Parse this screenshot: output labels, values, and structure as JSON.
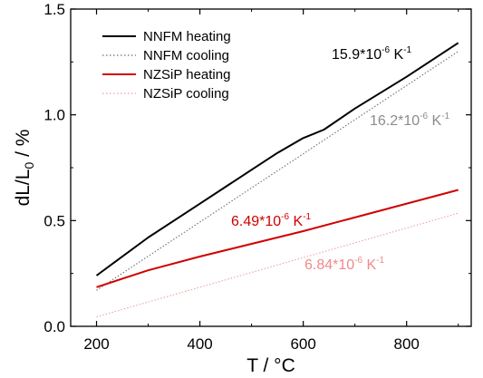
{
  "chart_data": {
    "type": "line",
    "xlabel": "T / °C",
    "ylabel": {
      "prefix": "dL/L",
      "sub": "0",
      "suffix": " / %"
    },
    "xlim": [
      150,
      925
    ],
    "ylim": [
      0.0,
      1.5
    ],
    "xticks": [
      200,
      400,
      600,
      800
    ],
    "yticks": [
      0.0,
      0.5,
      1.0,
      1.5
    ],
    "grid": false,
    "legend_position": "top-left",
    "series": [
      {
        "name": "NNFM heating",
        "color": "#000000",
        "style": "solid",
        "x": [
          200,
          300,
          400,
          500,
          550,
          600,
          620,
          640,
          700,
          800,
          900
        ],
        "y": [
          0.24,
          0.42,
          0.58,
          0.74,
          0.82,
          0.89,
          0.91,
          0.93,
          1.03,
          1.18,
          1.34
        ]
      },
      {
        "name": "NNFM cooling",
        "color": "#6f6f6f",
        "style": "dotted",
        "x": [
          200,
          900
        ],
        "y": [
          0.17,
          1.3
        ]
      },
      {
        "name": "NZSiP heating",
        "color": "#d00000",
        "style": "solid",
        "x": [
          200,
          300,
          400,
          600,
          900
        ],
        "y": [
          0.185,
          0.265,
          0.33,
          0.45,
          0.645
        ]
      },
      {
        "name": "NZSiP cooling",
        "color": "#f0a0a0",
        "style": "dotted",
        "x": [
          200,
          900
        ],
        "y": [
          0.045,
          0.535
        ]
      }
    ],
    "annotations": [
      {
        "base": "15.9*10",
        "exp1": "-6",
        "unit": " K",
        "exp2": "-1",
        "color": "#000000"
      },
      {
        "base": "16.2*10",
        "exp1": "-6",
        "unit": " K",
        "exp2": "-1",
        "color": "#8c8c8c"
      },
      {
        "base": "6.49*10",
        "exp1": "-6",
        "unit": " K",
        "exp2": "-1",
        "color": "#d00000"
      },
      {
        "base": "6.84*10",
        "exp1": "-6",
        "unit": " K",
        "exp2": "-1",
        "color": "#f08a8a"
      }
    ]
  }
}
